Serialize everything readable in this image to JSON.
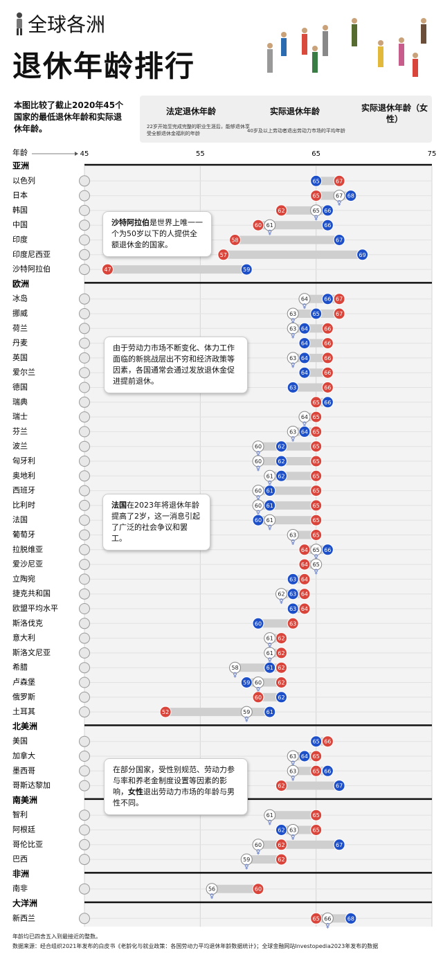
{
  "chart_data": {
    "type": "dot",
    "title": "全球各洲",
    "subtitle": "退休年龄排行",
    "intro": "本图比较了截止2020年45个国家的最低退休年龄和实际退休年龄。",
    "xlabel": "年龄",
    "xlim": [
      45,
      75
    ],
    "xticks": [
      45,
      55,
      65,
      75
    ],
    "grid": true,
    "series": [
      {
        "name": "法定退休年龄",
        "color": "#d9453b",
        "note": "22岁开始至完成完整的职业生涯后，能够退休享受全额退休金福利的年龄"
      },
      {
        "name": "实际退休年龄",
        "color": "#1d4fc8",
        "note": "40岁及以上劳动者退出劳动力市场的平均年龄"
      },
      {
        "name": "实际退休年龄（女性）",
        "color": "#ffffff"
      }
    ],
    "groups": [
      {
        "name": "亚洲",
        "categories": [
          "以色列",
          "日本",
          "韩国",
          "中国",
          "印度",
          "印度尼西亚",
          "沙特阿拉伯"
        ],
        "values": [
          [
            67,
            65,
            62,
            60,
            58,
            57,
            47
          ],
          [
            65,
            68,
            66,
            66,
            67,
            69,
            59
          ],
          [
            null,
            67,
            65,
            61,
            null,
            null,
            null
          ]
        ]
      },
      {
        "name": "欧洲",
        "categories": [
          "冰岛",
          "挪威",
          "荷兰",
          "丹麦",
          "英国",
          "爱尔兰",
          "德国",
          "瑞典",
          "瑞士",
          "芬兰",
          "波兰",
          "匈牙利",
          "奥地利",
          "西班牙",
          "比利时",
          "法国",
          "葡萄牙",
          "拉脱维亚",
          "爱沙尼亚",
          "立陶宛",
          "捷克共和国",
          "欧盟平均水平",
          "斯洛伐克",
          "意大利",
          "斯洛文尼亚",
          "希腊",
          "卢森堡",
          "俄罗斯",
          "土耳其"
        ],
        "values": [
          [
            67,
            67,
            66,
            66,
            66,
            66,
            66,
            65,
            65,
            65,
            65,
            65,
            65,
            65,
            65,
            65,
            65,
            64,
            64,
            64,
            64,
            64,
            63,
            62,
            62,
            62,
            62,
            60,
            52
          ],
          [
            66,
            65,
            64,
            64,
            64,
            64,
            63,
            66,
            null,
            64,
            62,
            62,
            62,
            61,
            61,
            60,
            null,
            66,
            null,
            63,
            63,
            63,
            60,
            null,
            null,
            61,
            59,
            62,
            61
          ],
          [
            64,
            63,
            63,
            null,
            63,
            null,
            null,
            null,
            64,
            63,
            60,
            60,
            61,
            60,
            60,
            61,
            63,
            65,
            65,
            null,
            62,
            null,
            null,
            61,
            61,
            58,
            60,
            null,
            59
          ]
        ]
      },
      {
        "name": "北美洲",
        "categories": [
          "美国",
          "加拿大",
          "墨西哥",
          "哥斯达黎加"
        ],
        "values": [
          [
            66,
            65,
            65,
            62
          ],
          [
            65,
            64,
            66,
            67
          ],
          [
            null,
            63,
            63,
            null
          ]
        ]
      },
      {
        "name": "南美洲",
        "categories": [
          "智利",
          "阿根廷",
          "哥伦比亚",
          "巴西"
        ],
        "values": [
          [
            65,
            65,
            62,
            62
          ],
          [
            null,
            62,
            67,
            null
          ],
          [
            61,
            63,
            60,
            59
          ]
        ]
      },
      {
        "name": "非洲",
        "categories": [
          "南非"
        ],
        "values": [
          [
            60
          ],
          [
            null
          ],
          [
            56
          ]
        ]
      },
      {
        "name": "大洋洲",
        "categories": [
          "新西兰"
        ],
        "values": [
          [
            65
          ],
          [
            68
          ],
          [
            66
          ]
        ]
      }
    ],
    "annotations": [
      {
        "bold": "沙特阿拉伯",
        "text": "是世界上唯一一个为50岁以下的人提供全额退休金的国家。"
      },
      {
        "text": "由于劳动力市场不断变化、体力工作面临的新挑战层出不穷和经济政策等因素，各国通常会通过发放退休金促进提前退休。"
      },
      {
        "bold": "法国",
        "text": "在2023年将退休年龄提高了2岁，这一消息引起了广泛的社会争议和罢工。"
      },
      {
        "text": "在部分国家，受性别规范、劳动力参与率和养老金制度设置等因素的影响，",
        "bold": "女性",
        "tail": "退出劳动力市场的年龄与男性不同。"
      }
    ],
    "footnote": "年龄均已四舍五入到最接近的整数。",
    "source": "数据来源：经合组织2021年发布的白皮书《老龄化与就业政策：各国劳动力平均退休年龄数据统计》；全球金融网站Investopedia2023年发布的数据"
  }
}
